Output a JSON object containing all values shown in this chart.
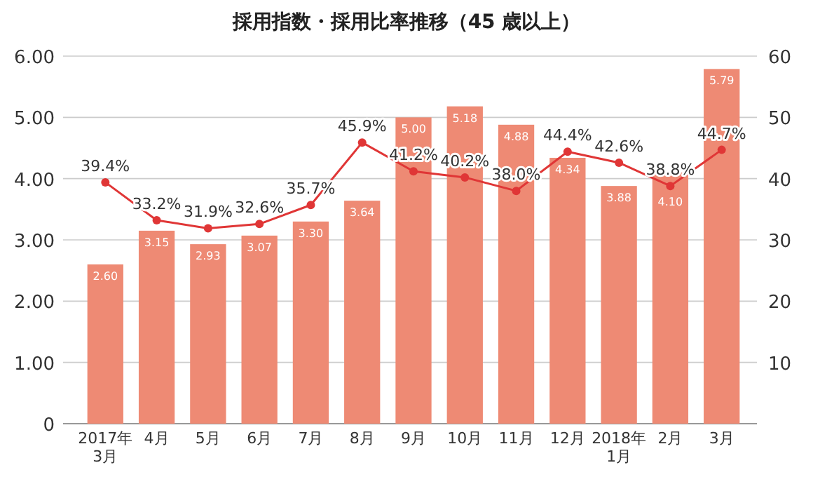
{
  "chart_data": {
    "type": "bar",
    "title": "採用指数・採用比率推移（45 歳以上）",
    "categories": [
      "2017年\n3月",
      "4月",
      "5月",
      "6月",
      "7月",
      "8月",
      "9月",
      "10月",
      "11月",
      "12月",
      "2018年\n1月",
      "2月",
      "3月"
    ],
    "series": [
      {
        "color": "#ee8a74",
        "values": [
          2.6,
          3.15,
          2.93,
          3.07,
          3.3,
          3.64,
          5.0,
          5.18,
          4.88,
          4.34,
          3.88,
          4.1,
          5.79
        ],
        "value_labels": [
          "2.60",
          "3.15",
          "2.93",
          "3.07",
          "3.30",
          "3.64",
          "5.00",
          "5.18",
          "4.88",
          "4.34",
          "3.88",
          "4.10",
          "5.79"
        ]
      },
      {
        "type": "line",
        "axis": "y2",
        "color": "#e03636",
        "marker": "circle",
        "values": [
          39.4,
          33.2,
          31.9,
          32.6,
          35.7,
          45.9,
          41.2,
          40.2,
          38.0,
          44.4,
          42.6,
          38.8,
          44.7
        ],
        "value_labels": [
          "39.4%",
          "33.2%",
          "31.9%",
          "32.6%",
          "35.7%",
          "45.9%",
          "41.2%",
          "40.2%",
          "38.0%",
          "44.4%",
          "42.6%",
          "38.8%",
          "44.7%"
        ]
      }
    ],
    "data_labels": true,
    "ylim": [
      0,
      6
    ],
    "yticks": [
      {
        "value": 0,
        "label": "0"
      },
      {
        "value": 1,
        "label": "1.00"
      },
      {
        "value": 2,
        "label": "2.00"
      },
      {
        "value": 3,
        "label": "3.00"
      },
      {
        "value": 4,
        "label": "4.00"
      },
      {
        "value": 5,
        "label": "5.00"
      },
      {
        "value": 6,
        "label": "6.00"
      }
    ],
    "y2lim": [
      0,
      60
    ],
    "y2ticks": [
      10,
      20,
      30,
      40,
      50,
      60
    ],
    "grid": "y"
  }
}
